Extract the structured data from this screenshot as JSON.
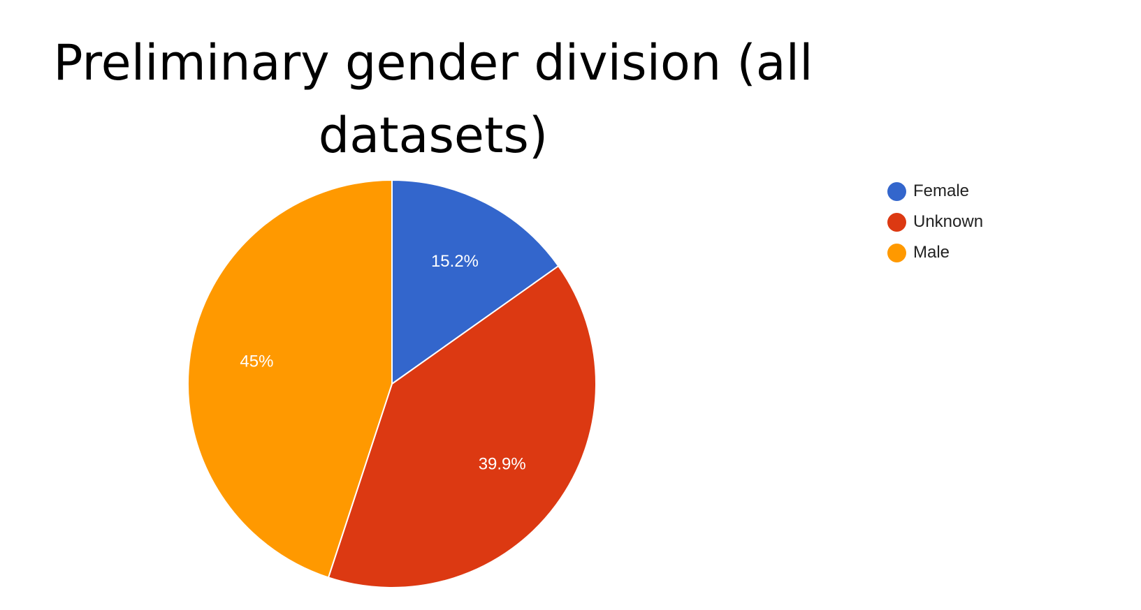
{
  "chart_data": {
    "type": "pie",
    "title": "Preliminary gender division (all datasets)",
    "slices": [
      {
        "label": "Female",
        "value": 15.2,
        "display": "15.2%",
        "color": "#3366cc"
      },
      {
        "label": "Unknown",
        "value": 39.9,
        "display": "39.9%",
        "color": "#dc3912"
      },
      {
        "label": "Male",
        "value": 45,
        "display": "45%",
        "color": "#ff9900"
      }
    ],
    "legend_position": "right"
  }
}
